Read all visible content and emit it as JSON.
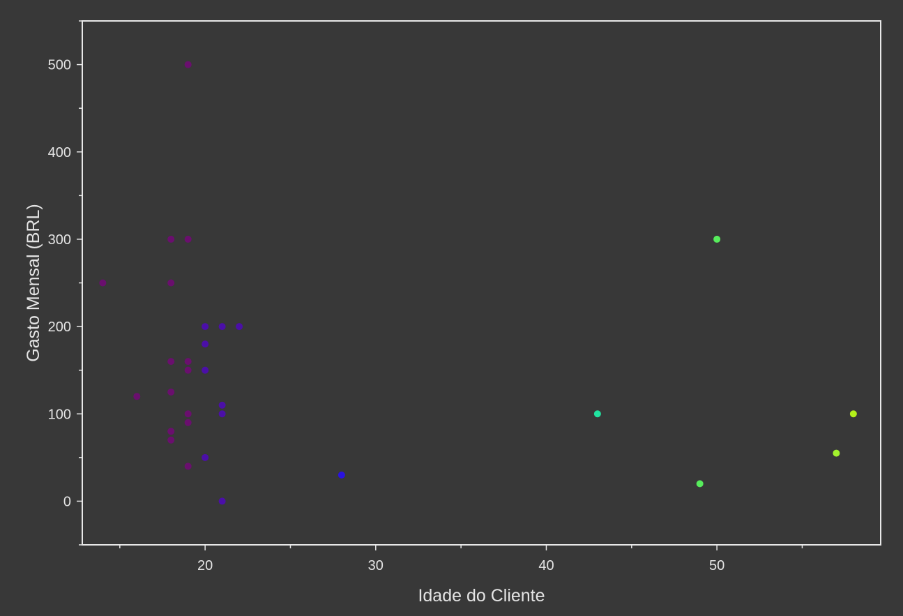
{
  "chart_data": {
    "type": "scatter",
    "title": "",
    "xlabel": "Idade do Cliente",
    "ylabel": "Gasto Mensal (BRL)",
    "xlim": [
      12.8,
      59.6
    ],
    "ylim": [
      -50,
      550
    ],
    "x_major_ticks": [
      20,
      30,
      40,
      50
    ],
    "x_minor_ticks": [
      15,
      25,
      35,
      45,
      55
    ],
    "y_major_ticks": [
      0,
      100,
      200,
      300,
      400,
      500
    ],
    "y_minor_ticks": [
      -50,
      50,
      150,
      250,
      350,
      450,
      550
    ],
    "grid": false,
    "legend": "none",
    "colormap": "color by age: purple (young) to blue to green to yellow-green (older)",
    "points": [
      {
        "x": 14,
        "y": 250,
        "color": "#6a0f6e"
      },
      {
        "x": 16,
        "y": 120,
        "color": "#6a0f6e"
      },
      {
        "x": 18,
        "y": 300,
        "color": "#6a0f6e"
      },
      {
        "x": 18,
        "y": 250,
        "color": "#6a0f6e"
      },
      {
        "x": 18,
        "y": 160,
        "color": "#6a0f6e"
      },
      {
        "x": 18,
        "y": 125,
        "color": "#6a0f6e"
      },
      {
        "x": 18,
        "y": 80,
        "color": "#6a0f6e"
      },
      {
        "x": 18,
        "y": 70,
        "color": "#6a0f6e"
      },
      {
        "x": 19,
        "y": 500,
        "color": "#6a0f6e"
      },
      {
        "x": 19,
        "y": 300,
        "color": "#6a0f6e"
      },
      {
        "x": 19,
        "y": 160,
        "color": "#6a0f6e"
      },
      {
        "x": 19,
        "y": 150,
        "color": "#6a0f6e"
      },
      {
        "x": 19,
        "y": 100,
        "color": "#6a0f6e"
      },
      {
        "x": 19,
        "y": 90,
        "color": "#6a0f6e"
      },
      {
        "x": 19,
        "y": 40,
        "color": "#6a0f6e"
      },
      {
        "x": 20,
        "y": 200,
        "color": "#4b0fa8"
      },
      {
        "x": 20,
        "y": 180,
        "color": "#4b0fa8"
      },
      {
        "x": 20,
        "y": 150,
        "color": "#4b0fa8"
      },
      {
        "x": 20,
        "y": 50,
        "color": "#4b0fa8"
      },
      {
        "x": 21,
        "y": 200,
        "color": "#4b0fa8"
      },
      {
        "x": 21,
        "y": 110,
        "color": "#4b0fa8"
      },
      {
        "x": 21,
        "y": 100,
        "color": "#4b0fa8"
      },
      {
        "x": 21,
        "y": 0,
        "color": "#4b0fa8"
      },
      {
        "x": 22,
        "y": 200,
        "color": "#4b0fa8"
      },
      {
        "x": 28,
        "y": 30,
        "color": "#2a12e0"
      },
      {
        "x": 43,
        "y": 100,
        "color": "#21e3a0"
      },
      {
        "x": 49,
        "y": 20,
        "color": "#57ec5c"
      },
      {
        "x": 50,
        "y": 300,
        "color": "#57ec5c"
      },
      {
        "x": 57,
        "y": 55,
        "color": "#a3f22d"
      },
      {
        "x": 58,
        "y": 100,
        "color": "#b3f01a"
      }
    ]
  }
}
